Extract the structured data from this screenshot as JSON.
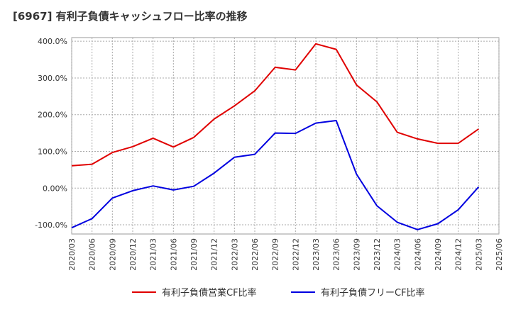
{
  "chart_data": {
    "type": "line",
    "title": "[6967]  有利子負債キャッシュフロー比率の推移",
    "x": [
      "2020/03",
      "2020/06",
      "2020/09",
      "2020/12",
      "2021/03",
      "2021/06",
      "2021/09",
      "2021/12",
      "2022/03",
      "2022/06",
      "2022/09",
      "2022/12",
      "2023/03",
      "2023/06",
      "2023/09",
      "2023/12",
      "2024/03",
      "2024/06",
      "2024/09",
      "2024/12",
      "2025/03",
      "2025/06"
    ],
    "ylim": [
      -125,
      410
    ],
    "yticks": [
      400,
      300,
      200,
      100,
      0,
      -100
    ],
    "ytick_labels": [
      "400.0%",
      "300.0%",
      "200.0%",
      "100.0%",
      "0.00%",
      "-100.0%"
    ],
    "grid": true,
    "legend_position": "bottom",
    "series": [
      {
        "name": "有利子負債営業CF比率",
        "color": "#e00000",
        "values": [
          61,
          65,
          97,
          113,
          136,
          112,
          138,
          188,
          224,
          265,
          329,
          322,
          393,
          378,
          281,
          235,
          152,
          134,
          122,
          122,
          161,
          null
        ]
      },
      {
        "name": "有利子負債フリーCF比率",
        "color": "#0000e0",
        "values": [
          -108,
          -83,
          -27,
          -7,
          6,
          -5,
          5,
          41,
          84,
          92,
          150,
          149,
          177,
          184,
          38,
          -48,
          -93,
          -113,
          -97,
          -59,
          3,
          null
        ]
      }
    ]
  }
}
